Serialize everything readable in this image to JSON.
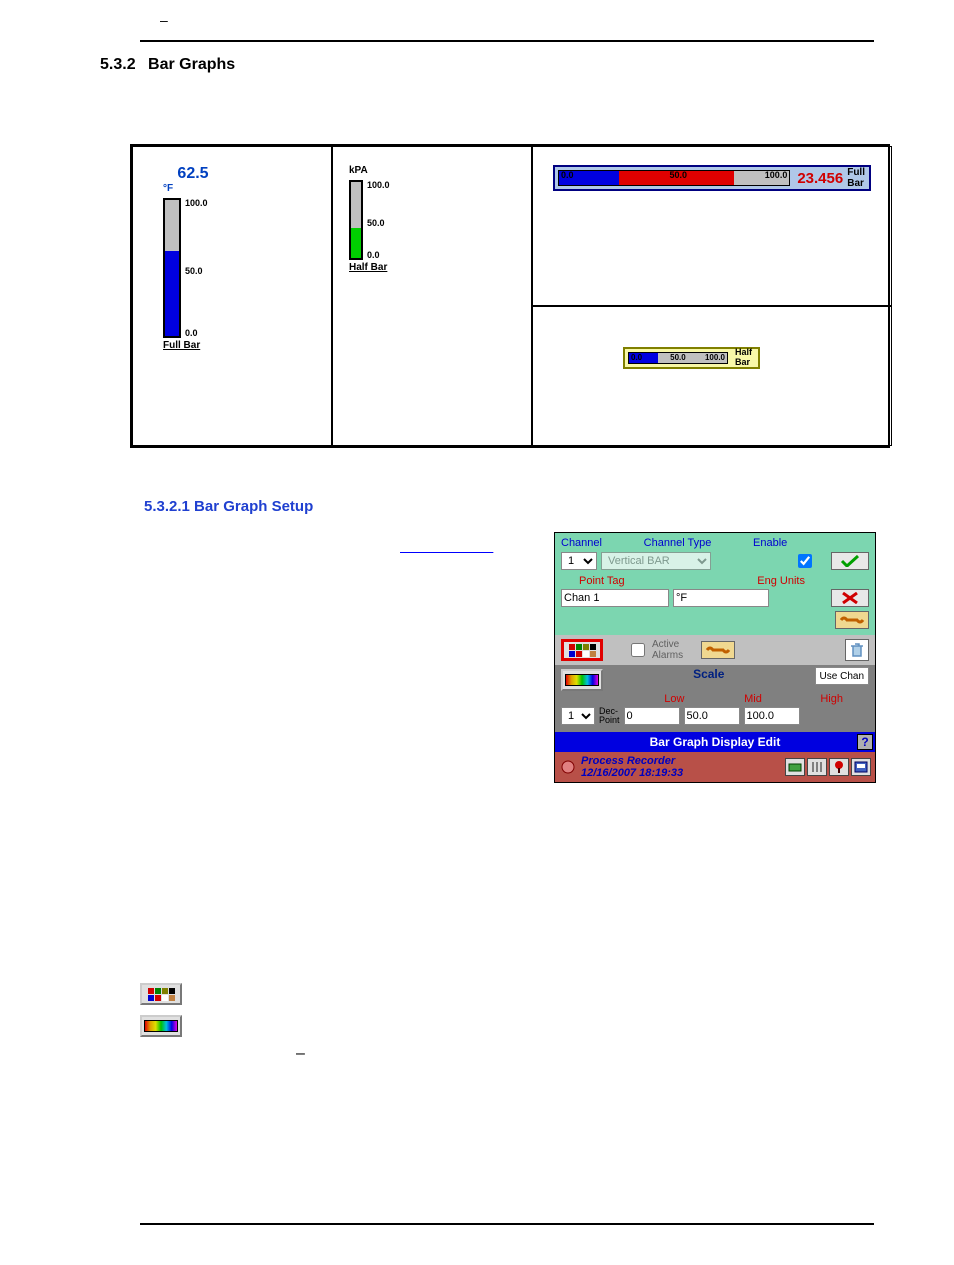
{
  "section_number": "5.3.2",
  "section_title": "Bar Graphs",
  "subsection_number": "5.3.2.1",
  "subsection_title": "Bar Graph Setup",
  "link_row_dash": "–",
  "preview": {
    "vert_full": {
      "value": "62.5",
      "unit": "°F",
      "fill_percent": 62.5,
      "fill_color": "#0000e0",
      "track_color": "#c0c0c0",
      "scale": {
        "min": "0.0",
        "mid": "50.0",
        "max": "100.0"
      },
      "tag": "Full Bar"
    },
    "vert_half": {
      "unit": "kPA",
      "fill_percent": 40,
      "fill_color": "#00d000",
      "track_color": "#c0c0c0",
      "scale": {
        "min": "0.0",
        "mid": "50.0",
        "max": "100.0"
      },
      "tag": "Half Bar"
    },
    "horiz_full": {
      "scale": {
        "min": "0.0",
        "mid": "50.0",
        "max": "100.0"
      },
      "fill_red_percent": 76,
      "fill_blue_percent": 26,
      "red_color": "#e00000",
      "blue_color": "#0000e0",
      "track_color": "#c0c0c0",
      "value": "23.456",
      "tag_line1": "Full",
      "tag_line2": "Bar",
      "frame_color": "#000080",
      "bg_color": "#b0c8e8"
    },
    "horiz_half": {
      "scale": {
        "min": "0.0",
        "mid": "50.0",
        "max": "100.0"
      },
      "fill_percent": 30,
      "fill_color": "#0000e0",
      "track_color": "#c0c0c0",
      "tag_line1": "Half",
      "tag_line2": "Bar",
      "frame_color": "#808000",
      "bg_color": "#f8f8a8"
    }
  },
  "dialog": {
    "headers": {
      "channel": "Channel",
      "channel_type": "Channel Type",
      "enable": "Enable",
      "point_tag": "Point Tag",
      "eng_units": "Eng Units",
      "active_alarms": "Active\nAlarms",
      "scale": "Scale",
      "low": "Low",
      "mid": "Mid",
      "high": "High",
      "dec_point": "Dec-\nPoint",
      "use_chan": "Use Chan"
    },
    "channel_value": "1",
    "channel_type_value": "Vertical BAR",
    "enable_checked": true,
    "point_tag_value": "Chan 1",
    "eng_units_value": "°F",
    "active_alarms_checked": false,
    "dec_point_value": "1",
    "low_value": "0",
    "mid_value": "50.0",
    "high_value": "100.0",
    "titlebar": "Bar Graph Display Edit",
    "footer_line1": "Process Recorder",
    "footer_line2": "12/16/2007 18:19:33",
    "palette_colors": [
      "#d00000",
      "#008000",
      "#808000",
      "#000000",
      "#0000d0",
      "#d00000",
      "#ffffff",
      "#c08040"
    ],
    "top_bg": "#7cd6b0",
    "mid_bg": "#d88878",
    "mid2_bg": "#c0c0c0",
    "scale_bg": "#808080",
    "titlebar_bg": "#0000e0",
    "footer_bg": "#b85048"
  }
}
